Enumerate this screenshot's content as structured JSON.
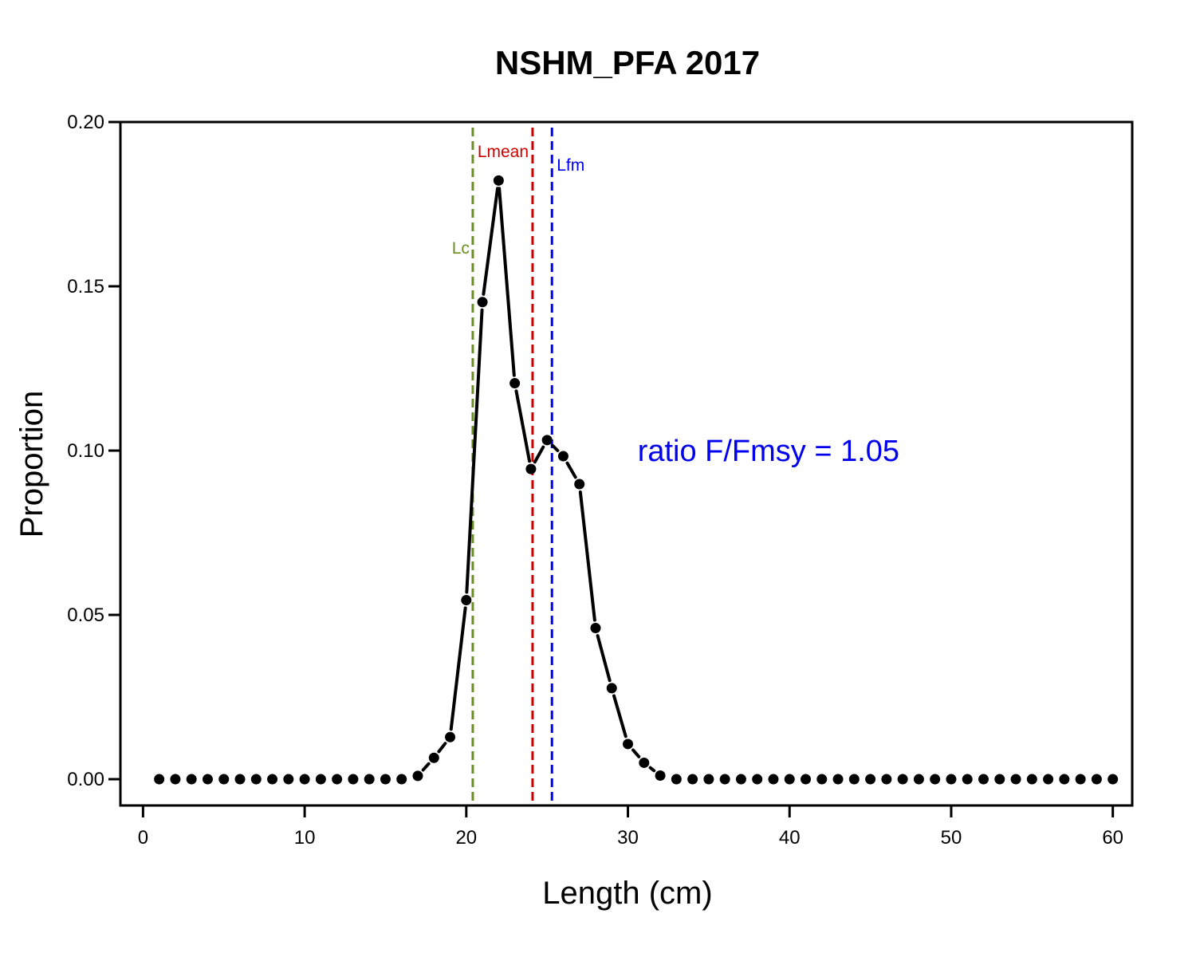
{
  "chart_data": {
    "type": "line",
    "title": "NSHM_PFA 2017",
    "xlabel": "Length (cm)",
    "ylabel": "Proportion",
    "xlim": [
      -1.4,
      61.2
    ],
    "ylim": [
      -0.008,
      0.2
    ],
    "xticks": [
      0,
      10,
      20,
      30,
      40,
      50,
      60
    ],
    "xtick_labels": [
      "0",
      "10",
      "20",
      "30",
      "40",
      "50",
      "60"
    ],
    "yticks": [
      0,
      0.05,
      0.1,
      0.15,
      0.2
    ],
    "ytick_labels": [
      "0.00",
      "0.05",
      "0.10",
      "0.15",
      "0.20"
    ],
    "grid": false,
    "series": [
      {
        "color": "#000000",
        "style": "points-with-dashed-line",
        "x": [
          1,
          2,
          3,
          4,
          5,
          6,
          7,
          8,
          9,
          10,
          11,
          12,
          13,
          14,
          15,
          16,
          17,
          18,
          19,
          20,
          21,
          22,
          23,
          24,
          25,
          26,
          27,
          28,
          29,
          30,
          31,
          32,
          33,
          34,
          35,
          36,
          37,
          38,
          39,
          40,
          41,
          42,
          43,
          44,
          45,
          46,
          47,
          48,
          49,
          50,
          51,
          52,
          53,
          54,
          55,
          56,
          57,
          58,
          59,
          60
        ],
        "y": [
          0,
          0,
          0,
          0,
          0,
          0,
          0,
          0,
          0,
          0,
          0,
          0,
          0,
          0,
          0,
          0,
          0.001,
          0.0065,
          0.0128,
          0.0545,
          0.1452,
          0.1822,
          0.1205,
          0.0944,
          0.1032,
          0.0983,
          0.0898,
          0.046,
          0.0277,
          0.0107,
          0.005,
          0.0011,
          0,
          0,
          0,
          0,
          0,
          0,
          0,
          0,
          0,
          0,
          0,
          0,
          0,
          0,
          0,
          0,
          0,
          0,
          0,
          0,
          0,
          0,
          0,
          0,
          0,
          0,
          0,
          0
        ]
      }
    ],
    "reference_lines": [
      {
        "label": "Lc",
        "x": 20.4,
        "color": "#6b8e23"
      },
      {
        "label": "Lmean",
        "x": 24.1,
        "color": "#cc0000"
      },
      {
        "label": "Lfm",
        "x": 25.3,
        "color": "#0000ee"
      }
    ],
    "annotations": [
      {
        "text": "ratio F/Fmsy = 1.05",
        "x": 30.6,
        "y": 0.1,
        "color": "#0000ee"
      }
    ]
  }
}
